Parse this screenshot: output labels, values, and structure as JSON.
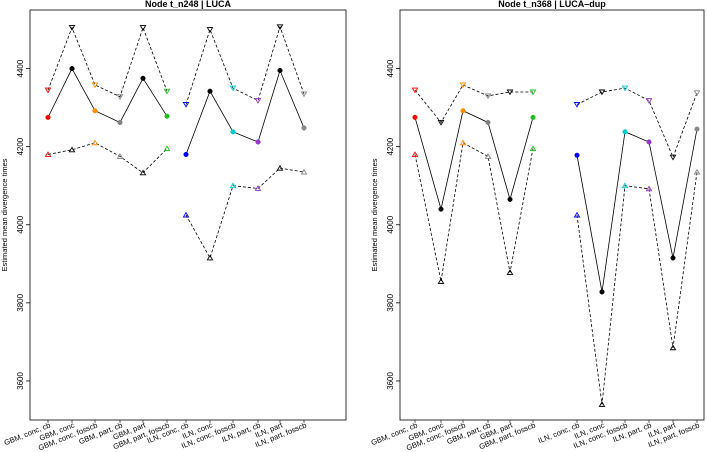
{
  "chart_data": [
    {
      "type": "line",
      "title": "Node t_n248 | LUCA",
      "ylabel": "Estimated mean divergence times",
      "ylim": [
        3500,
        4550
      ],
      "yticks": [
        3600,
        3800,
        4000,
        4200,
        4400
      ],
      "categories": [
        "GBM, conc, cb",
        "GBM, conc",
        "GBM, conc, fosscb",
        "GBM, part, cb",
        "GBM, part",
        "GBM, part, fosscb",
        "ILN, conc, cb",
        "ILN, conc",
        "ILN, conc, fosscb",
        "ILN, part, cb",
        "ILN, part",
        "ILN, part, fosscb"
      ],
      "series": [
        {
          "name": "upper",
          "values": [
            4345,
            4505,
            4358,
            4328,
            4505,
            4342,
            4308,
            4500,
            4350,
            4318,
            4507,
            4335
          ]
        },
        {
          "name": "mean",
          "values": [
            4275,
            4400,
            4292,
            4262,
            4375,
            4278,
            4180,
            4342,
            4238,
            4212,
            4395,
            4248
          ]
        },
        {
          "name": "lower",
          "values": [
            4180,
            4192,
            4210,
            4175,
            4133,
            4195,
            4025,
            3915,
            4100,
            4093,
            4145,
            4135
          ]
        }
      ],
      "point_colors": [
        "#ff0000",
        "#000000",
        "#ff8c00",
        "#808080",
        "#000000",
        "#22c022",
        "#0000ff",
        "#000000",
        "#00cccc",
        "#9932cc",
        "#000000",
        "#888888"
      ]
    },
    {
      "type": "line",
      "title": "Node t_n368 | LUCA–dup",
      "ylabel": "Estimated mean divergence times",
      "ylim": [
        3500,
        4550
      ],
      "yticks": [
        3600,
        3800,
        4000,
        4200,
        4400
      ],
      "categories": [
        "GBM, conc, cb",
        "GBM, conc",
        "GBM, conc, fosscb",
        "GBM, part, cb",
        "GBM, part",
        "GBM, part, fosscb",
        "ILN, conc, cb",
        "ILN, conc",
        "ILN, conc, fosscb",
        "ILN, part, cb",
        "ILN, part",
        "ILN, part, fosscb"
      ],
      "series": [
        {
          "name": "upper",
          "values": [
            4345,
            4262,
            4358,
            4330,
            4340,
            4340,
            4308,
            4340,
            4350,
            4318,
            4173,
            4338
          ]
        },
        {
          "name": "mean",
          "values": [
            4275,
            4040,
            4292,
            4262,
            4065,
            4275,
            4178,
            3828,
            4238,
            4212,
            3915,
            4245
          ]
        },
        {
          "name": "lower",
          "values": [
            4180,
            3855,
            4210,
            4175,
            3878,
            4195,
            4025,
            3540,
            4100,
            4092,
            3685,
            4135
          ]
        }
      ],
      "point_colors": [
        "#ff0000",
        "#000000",
        "#ff8c00",
        "#808080",
        "#000000",
        "#22c022",
        "#0000ff",
        "#000000",
        "#00cccc",
        "#9932cc",
        "#000000",
        "#888888"
      ]
    }
  ]
}
